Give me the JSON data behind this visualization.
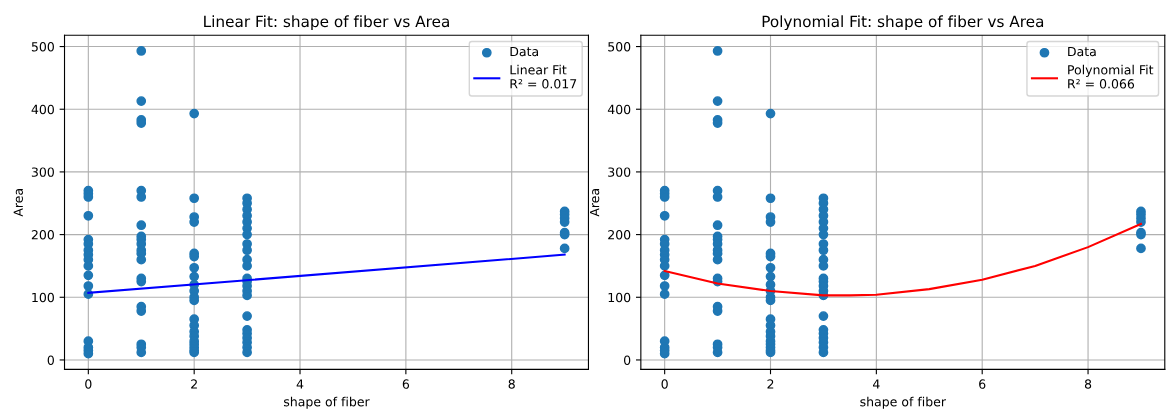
{
  "chart_data": [
    {
      "type": "scatter",
      "title": "Linear Fit: shape of fiber vs Area",
      "xlabel": "shape of fiber",
      "ylabel": "Area",
      "xlim": [
        -0.45,
        9.45
      ],
      "ylim": [
        -15,
        518
      ],
      "xticks": [
        0,
        2,
        4,
        6,
        8
      ],
      "yticks": [
        0,
        100,
        200,
        300,
        400,
        500
      ],
      "grid": true,
      "legend": "top right",
      "series": [
        {
          "name": "Data",
          "marker": "circle",
          "color": "#1f77b4",
          "x": [
            0,
            0,
            0,
            0,
            0,
            0,
            0,
            0,
            0,
            0,
            0,
            0,
            0,
            0,
            0,
            0,
            0,
            1,
            1,
            1,
            1,
            1,
            1,
            1,
            1,
            1,
            1,
            1,
            1,
            1,
            1,
            1,
            1,
            1,
            1,
            1,
            1,
            2,
            2,
            2,
            2,
            2,
            2,
            2,
            2,
            2,
            2,
            2,
            2,
            2,
            2,
            2,
            2,
            2,
            2,
            2,
            2,
            2,
            3,
            3,
            3,
            3,
            3,
            3,
            3,
            3,
            3,
            3,
            3,
            3,
            3,
            3,
            3,
            3,
            3,
            3,
            3,
            3,
            3,
            3,
            3,
            9,
            9,
            9,
            9,
            9,
            9,
            9
          ],
          "values": [
            270,
            265,
            260,
            230,
            192,
            185,
            175,
            168,
            160,
            150,
            135,
            118,
            105,
            30,
            20,
            15,
            10,
            493,
            413,
            383,
            378,
            270,
            260,
            215,
            197,
            192,
            185,
            175,
            170,
            160,
            130,
            125,
            85,
            78,
            25,
            20,
            12,
            393,
            258,
            228,
            220,
            170,
            165,
            147,
            133,
            120,
            110,
            100,
            95,
            65,
            55,
            45,
            38,
            30,
            25,
            20,
            15,
            12,
            258,
            250,
            240,
            230,
            220,
            210,
            200,
            185,
            175,
            160,
            150,
            130,
            125,
            118,
            110,
            103,
            70,
            48,
            42,
            35,
            28,
            20,
            12,
            237,
            232,
            226,
            220,
            203,
            200,
            178
          ]
        },
        {
          "name": "Linear Fit\nR² = 0.017",
          "type": "line",
          "color": "#0000ff",
          "x": [
            0,
            9
          ],
          "values": [
            107,
            168
          ]
        }
      ]
    },
    {
      "type": "scatter",
      "title": "Polynomial Fit: shape of fiber vs Area",
      "xlabel": "shape of fiber",
      "ylabel": "Area",
      "xlim": [
        -0.45,
        9.45
      ],
      "ylim": [
        -15,
        518
      ],
      "xticks": [
        0,
        2,
        4,
        6,
        8
      ],
      "yticks": [
        0,
        100,
        200,
        300,
        400,
        500
      ],
      "grid": true,
      "legend": "top right",
      "series": [
        {
          "name": "Data",
          "marker": "circle",
          "color": "#1f77b4",
          "x": [
            0,
            0,
            0,
            0,
            0,
            0,
            0,
            0,
            0,
            0,
            0,
            0,
            0,
            0,
            0,
            0,
            0,
            1,
            1,
            1,
            1,
            1,
            1,
            1,
            1,
            1,
            1,
            1,
            1,
            1,
            1,
            1,
            1,
            1,
            1,
            1,
            1,
            2,
            2,
            2,
            2,
            2,
            2,
            2,
            2,
            2,
            2,
            2,
            2,
            2,
            2,
            2,
            2,
            2,
            2,
            2,
            2,
            2,
            3,
            3,
            3,
            3,
            3,
            3,
            3,
            3,
            3,
            3,
            3,
            3,
            3,
            3,
            3,
            3,
            3,
            3,
            3,
            3,
            3,
            3,
            3,
            9,
            9,
            9,
            9,
            9,
            9,
            9
          ],
          "values": [
            270,
            265,
            260,
            230,
            192,
            185,
            175,
            168,
            160,
            150,
            135,
            118,
            105,
            30,
            20,
            15,
            10,
            493,
            413,
            383,
            378,
            270,
            260,
            215,
            197,
            192,
            185,
            175,
            170,
            160,
            130,
            125,
            85,
            78,
            25,
            20,
            12,
            393,
            258,
            228,
            220,
            170,
            165,
            147,
            133,
            120,
            110,
            100,
            95,
            65,
            55,
            45,
            38,
            30,
            25,
            20,
            15,
            12,
            258,
            250,
            240,
            230,
            220,
            210,
            200,
            185,
            175,
            160,
            150,
            130,
            125,
            118,
            110,
            103,
            70,
            48,
            42,
            35,
            28,
            20,
            12,
            237,
            232,
            226,
            220,
            203,
            200,
            178
          ]
        },
        {
          "name": "Polynomial Fit\nR² = 0.066",
          "type": "line",
          "color": "#ff0000",
          "x": [
            0,
            1,
            2,
            3,
            3.5,
            4,
            5,
            6,
            7,
            8,
            9
          ],
          "values": [
            142,
            122,
            110,
            103,
            103,
            104,
            113,
            128,
            150,
            180,
            217
          ]
        }
      ]
    }
  ]
}
